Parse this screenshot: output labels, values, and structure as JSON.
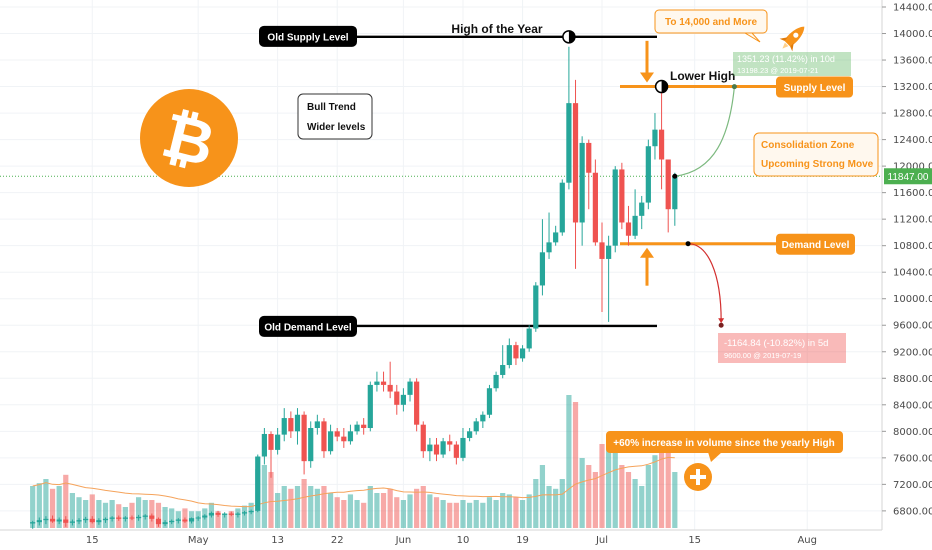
{
  "chart_data": {
    "type": "candlestick",
    "y_axis": {
      "min": 6600,
      "max": 14400,
      "ticks": [
        "14400.00",
        "14000.00",
        "13600.00",
        "13200.00",
        "12800.00",
        "12400.00",
        "12000.00",
        "11600.00",
        "11200.00",
        "10800.00",
        "10400.00",
        "10000.00",
        "9600.00",
        "9200.00",
        "8800.00",
        "8400.00",
        "8000.00",
        "7600.00",
        "7200.00",
        "6800.00"
      ],
      "current_price": "11847.00",
      "current_price_value": 11847
    },
    "x_axis": {
      "ticks": [
        "15",
        "May",
        "13",
        "22",
        "Jun",
        "10",
        "19",
        "Jul",
        "15",
        "Aug"
      ],
      "tick_dates": [
        "2019-04-15",
        "2019-05-01",
        "2019-05-13",
        "2019-05-22",
        "2019-06-01",
        "2019-06-10",
        "2019-06-19",
        "2019-07-01",
        "2019-07-15",
        "2019-08-01"
      ],
      "range": [
        "2019-04-06",
        "2019-08-18"
      ]
    },
    "candles": [
      {
        "date": "2019-04-06",
        "open": 6610,
        "high": 6650,
        "low": 6530,
        "close": 6630,
        "volume": 0.3
      },
      {
        "date": "2019-04-07",
        "open": 6630,
        "high": 6700,
        "low": 6580,
        "close": 6660,
        "volume": 0.32
      },
      {
        "date": "2019-04-08",
        "open": 6660,
        "high": 6720,
        "low": 6600,
        "close": 6680,
        "volume": 0.35
      },
      {
        "date": "2019-04-09",
        "open": 6680,
        "high": 6730,
        "low": 6620,
        "close": 6640,
        "volume": 0.28
      },
      {
        "date": "2019-04-10",
        "open": 6640,
        "high": 6700,
        "low": 6600,
        "close": 6670,
        "volume": 0.3
      },
      {
        "date": "2019-04-11",
        "open": 6670,
        "high": 6720,
        "low": 6560,
        "close": 6620,
        "volume": 0.38
      },
      {
        "date": "2019-04-12",
        "open": 6620,
        "high": 6670,
        "low": 6580,
        "close": 6640,
        "volume": 0.25
      },
      {
        "date": "2019-04-13",
        "open": 6640,
        "high": 6690,
        "low": 6600,
        "close": 6660,
        "volume": 0.22
      },
      {
        "date": "2019-04-14",
        "open": 6660,
        "high": 6710,
        "low": 6620,
        "close": 6680,
        "volume": 0.2
      },
      {
        "date": "2019-04-15",
        "open": 6680,
        "high": 6720,
        "low": 6610,
        "close": 6630,
        "volume": 0.24
      },
      {
        "date": "2019-04-16",
        "open": 6630,
        "high": 6690,
        "low": 6590,
        "close": 6660,
        "volume": 0.2
      },
      {
        "date": "2019-04-17",
        "open": 6660,
        "high": 6700,
        "low": 6620,
        "close": 6680,
        "volume": 0.18
      },
      {
        "date": "2019-04-18",
        "open": 6680,
        "high": 6720,
        "low": 6640,
        "close": 6700,
        "volume": 0.2
      },
      {
        "date": "2019-04-19",
        "open": 6700,
        "high": 6730,
        "low": 6650,
        "close": 6680,
        "volume": 0.17
      },
      {
        "date": "2019-04-20",
        "open": 6680,
        "high": 6720,
        "low": 6640,
        "close": 6700,
        "volume": 0.15
      },
      {
        "date": "2019-04-21",
        "open": 6700,
        "high": 6730,
        "low": 6660,
        "close": 6690,
        "volume": 0.18
      },
      {
        "date": "2019-04-22",
        "open": 6690,
        "high": 6740,
        "low": 6650,
        "close": 6710,
        "volume": 0.22
      },
      {
        "date": "2019-04-23",
        "open": 6710,
        "high": 6750,
        "low": 6670,
        "close": 6730,
        "volume": 0.2
      },
      {
        "date": "2019-04-24",
        "open": 6730,
        "high": 6760,
        "low": 6640,
        "close": 6680,
        "volume": 0.2
      },
      {
        "date": "2019-04-25",
        "open": 6680,
        "high": 6700,
        "low": 6560,
        "close": 6600,
        "volume": 0.18
      },
      {
        "date": "2019-04-26",
        "open": 6600,
        "high": 6660,
        "low": 6570,
        "close": 6630,
        "volume": 0.15
      },
      {
        "date": "2019-04-27",
        "open": 6630,
        "high": 6670,
        "low": 6600,
        "close": 6650,
        "volume": 0.14
      },
      {
        "date": "2019-04-28",
        "open": 6650,
        "high": 6690,
        "low": 6610,
        "close": 6670,
        "volume": 0.12
      },
      {
        "date": "2019-04-29",
        "open": 6670,
        "high": 6700,
        "low": 6620,
        "close": 6640,
        "volume": 0.14
      },
      {
        "date": "2019-04-30",
        "open": 6640,
        "high": 6700,
        "low": 6610,
        "close": 6690,
        "volume": 0.12
      },
      {
        "date": "2019-05-01",
        "open": 6690,
        "high": 6720,
        "low": 6650,
        "close": 6700,
        "volume": 0.12
      },
      {
        "date": "2019-05-02",
        "open": 6700,
        "high": 6750,
        "low": 6670,
        "close": 6730,
        "volume": 0.14
      },
      {
        "date": "2019-05-03",
        "open": 6730,
        "high": 6790,
        "low": 6700,
        "close": 6770,
        "volume": 0.18
      },
      {
        "date": "2019-05-04",
        "open": 6770,
        "high": 6800,
        "low": 6710,
        "close": 6740,
        "volume": 0.12
      },
      {
        "date": "2019-05-05",
        "open": 6740,
        "high": 6780,
        "low": 6700,
        "close": 6760,
        "volume": 0.1
      },
      {
        "date": "2019-05-06",
        "open": 6760,
        "high": 6790,
        "low": 6720,
        "close": 6740,
        "volume": 0.12
      },
      {
        "date": "2019-05-07",
        "open": 6740,
        "high": 6780,
        "low": 6700,
        "close": 6760,
        "volume": 0.14
      },
      {
        "date": "2019-05-08",
        "open": 6760,
        "high": 6800,
        "low": 6730,
        "close": 6780,
        "volume": 0.16
      },
      {
        "date": "2019-05-09",
        "open": 6780,
        "high": 6820,
        "low": 6750,
        "close": 6800,
        "volume": 0.18
      },
      {
        "date": "2019-05-10",
        "open": 6800,
        "high": 7650,
        "low": 6780,
        "close": 7620,
        "volume": 0.42
      },
      {
        "date": "2019-05-11",
        "open": 7620,
        "high": 8050,
        "low": 7500,
        "close": 7960,
        "volume": 0.45
      },
      {
        "date": "2019-05-12",
        "open": 7960,
        "high": 8000,
        "low": 7300,
        "close": 7720,
        "volume": 0.4
      },
      {
        "date": "2019-05-13",
        "open": 7720,
        "high": 8050,
        "low": 7650,
        "close": 7950,
        "volume": 0.25
      },
      {
        "date": "2019-05-14",
        "open": 7950,
        "high": 8350,
        "low": 7850,
        "close": 8200,
        "volume": 0.3
      },
      {
        "date": "2019-05-15",
        "open": 8200,
        "high": 8300,
        "low": 7900,
        "close": 8000,
        "volume": 0.28
      },
      {
        "date": "2019-05-16",
        "open": 8000,
        "high": 8350,
        "low": 7800,
        "close": 8250,
        "volume": 0.3
      },
      {
        "date": "2019-05-17",
        "open": 8250,
        "high": 8300,
        "low": 7350,
        "close": 7550,
        "volume": 0.35
      },
      {
        "date": "2019-05-18",
        "open": 7550,
        "high": 8150,
        "low": 7450,
        "close": 8050,
        "volume": 0.3
      },
      {
        "date": "2019-05-19",
        "open": 8050,
        "high": 8250,
        "low": 7950,
        "close": 8150,
        "volume": 0.28
      },
      {
        "date": "2019-05-20",
        "open": 8150,
        "high": 8200,
        "low": 7600,
        "close": 7700,
        "volume": 0.3
      },
      {
        "date": "2019-05-21",
        "open": 7700,
        "high": 8100,
        "low": 7650,
        "close": 8000,
        "volume": 0.25
      },
      {
        "date": "2019-05-22",
        "open": 8000,
        "high": 8050,
        "low": 7850,
        "close": 7920,
        "volume": 0.22
      },
      {
        "date": "2019-05-23",
        "open": 7920,
        "high": 8050,
        "low": 7750,
        "close": 7850,
        "volume": 0.2
      },
      {
        "date": "2019-05-24",
        "open": 7850,
        "high": 8100,
        "low": 7800,
        "close": 8000,
        "volume": 0.24
      },
      {
        "date": "2019-05-25",
        "open": 8000,
        "high": 8150,
        "low": 7950,
        "close": 8100,
        "volume": 0.2
      },
      {
        "date": "2019-05-26",
        "open": 8100,
        "high": 8200,
        "low": 7950,
        "close": 8050,
        "volume": 0.18
      },
      {
        "date": "2019-05-27",
        "open": 8050,
        "high": 8750,
        "low": 8000,
        "close": 8700,
        "volume": 0.3
      },
      {
        "date": "2019-05-28",
        "open": 8700,
        "high": 8900,
        "low": 8600,
        "close": 8750,
        "volume": 0.25
      },
      {
        "date": "2019-05-29",
        "open": 8750,
        "high": 8900,
        "low": 8600,
        "close": 8700,
        "volume": 0.25
      },
      {
        "date": "2019-05-30",
        "open": 8700,
        "high": 9050,
        "low": 8500,
        "close": 8600,
        "volume": 0.28
      },
      {
        "date": "2019-05-31",
        "open": 8600,
        "high": 8700,
        "low": 8250,
        "close": 8400,
        "volume": 0.22
      },
      {
        "date": "2019-06-01",
        "open": 8400,
        "high": 8650,
        "low": 8300,
        "close": 8550,
        "volume": 0.2
      },
      {
        "date": "2019-06-02",
        "open": 8550,
        "high": 8800,
        "low": 8450,
        "close": 8750,
        "volume": 0.24
      },
      {
        "date": "2019-06-03",
        "open": 8750,
        "high": 8800,
        "low": 8000,
        "close": 8100,
        "volume": 0.28
      },
      {
        "date": "2019-06-04",
        "open": 8100,
        "high": 8150,
        "low": 7600,
        "close": 7700,
        "volume": 0.3
      },
      {
        "date": "2019-06-05",
        "open": 7700,
        "high": 7900,
        "low": 7550,
        "close": 7800,
        "volume": 0.24
      },
      {
        "date": "2019-06-06",
        "open": 7800,
        "high": 7900,
        "low": 7550,
        "close": 7650,
        "volume": 0.22
      },
      {
        "date": "2019-06-07",
        "open": 7650,
        "high": 7900,
        "low": 7600,
        "close": 7850,
        "volume": 0.2
      },
      {
        "date": "2019-06-08",
        "open": 7850,
        "high": 7950,
        "low": 7700,
        "close": 7800,
        "volume": 0.18
      },
      {
        "date": "2019-06-09",
        "open": 7800,
        "high": 7850,
        "low": 7500,
        "close": 7600,
        "volume": 0.18
      },
      {
        "date": "2019-06-10",
        "open": 7600,
        "high": 8050,
        "low": 7550,
        "close": 7900,
        "volume": 0.2
      },
      {
        "date": "2019-06-11",
        "open": 7900,
        "high": 8050,
        "low": 7850,
        "close": 8000,
        "volume": 0.18
      },
      {
        "date": "2019-06-12",
        "open": 8000,
        "high": 8200,
        "low": 7950,
        "close": 8150,
        "volume": 0.2
      },
      {
        "date": "2019-06-13",
        "open": 8150,
        "high": 8300,
        "low": 8050,
        "close": 8250,
        "volume": 0.18
      },
      {
        "date": "2019-06-14",
        "open": 8250,
        "high": 8700,
        "low": 8200,
        "close": 8650,
        "volume": 0.22
      },
      {
        "date": "2019-06-15",
        "open": 8650,
        "high": 8900,
        "low": 8600,
        "close": 8850,
        "volume": 0.2
      },
      {
        "date": "2019-06-16",
        "open": 8850,
        "high": 9300,
        "low": 8800,
        "close": 9000,
        "volume": 0.25
      },
      {
        "date": "2019-06-17",
        "open": 9000,
        "high": 9400,
        "low": 8950,
        "close": 9300,
        "volume": 0.24
      },
      {
        "date": "2019-06-18",
        "open": 9300,
        "high": 9350,
        "low": 9000,
        "close": 9100,
        "volume": 0.22
      },
      {
        "date": "2019-06-19",
        "open": 9100,
        "high": 9300,
        "low": 9050,
        "close": 9250,
        "volume": 0.2
      },
      {
        "date": "2019-06-20",
        "open": 9250,
        "high": 9600,
        "low": 9200,
        "close": 9550,
        "volume": 0.24
      },
      {
        "date": "2019-06-21",
        "open": 9550,
        "high": 10250,
        "low": 9500,
        "close": 10200,
        "volume": 0.35
      },
      {
        "date": "2019-06-22",
        "open": 10200,
        "high": 11200,
        "low": 10050,
        "close": 10700,
        "volume": 0.45
      },
      {
        "date": "2019-06-23",
        "open": 10700,
        "high": 11300,
        "low": 10600,
        "close": 10850,
        "volume": 0.3
      },
      {
        "date": "2019-06-24",
        "open": 10850,
        "high": 11100,
        "low": 10800,
        "close": 11000,
        "volume": 0.28
      },
      {
        "date": "2019-06-25",
        "open": 11000,
        "high": 11800,
        "low": 10950,
        "close": 11750,
        "volume": 0.35
      },
      {
        "date": "2019-06-26",
        "open": 11750,
        "high": 13800,
        "low": 11650,
        "close": 12950,
        "volume": 0.95
      },
      {
        "date": "2019-06-27",
        "open": 12950,
        "high": 13300,
        "low": 10450,
        "close": 11150,
        "volume": 0.9
      },
      {
        "date": "2019-06-28",
        "open": 11150,
        "high": 12450,
        "low": 10800,
        "close": 12350,
        "volume": 0.5
      },
      {
        "date": "2019-06-29",
        "open": 12350,
        "high": 12400,
        "low": 11350,
        "close": 11900,
        "volume": 0.45
      },
      {
        "date": "2019-06-30",
        "open": 11900,
        "high": 12100,
        "low": 10800,
        "close": 10850,
        "volume": 0.4
      },
      {
        "date": "2019-07-01",
        "open": 10850,
        "high": 11150,
        "low": 9800,
        "close": 10600,
        "volume": 0.6
      },
      {
        "date": "2019-07-02",
        "open": 10600,
        "high": 10950,
        "low": 9650,
        "close": 10800,
        "volume": 0.62
      },
      {
        "date": "2019-07-03",
        "open": 10800,
        "high": 12000,
        "low": 10700,
        "close": 11950,
        "volume": 0.58
      },
      {
        "date": "2019-07-04",
        "open": 11950,
        "high": 12050,
        "low": 11050,
        "close": 11150,
        "volume": 0.45
      },
      {
        "date": "2019-07-05",
        "open": 11150,
        "high": 11400,
        "low": 10800,
        "close": 10950,
        "volume": 0.4
      },
      {
        "date": "2019-07-06",
        "open": 10950,
        "high": 11650,
        "low": 10900,
        "close": 11250,
        "volume": 0.35
      },
      {
        "date": "2019-07-07",
        "open": 11250,
        "high": 11550,
        "low": 11050,
        "close": 11450,
        "volume": 0.3
      },
      {
        "date": "2019-07-08",
        "open": 11450,
        "high": 12400,
        "low": 11350,
        "close": 12300,
        "volume": 0.45
      },
      {
        "date": "2019-07-09",
        "open": 12300,
        "high": 12800,
        "low": 12100,
        "close": 12550,
        "volume": 0.52
      },
      {
        "date": "2019-07-10",
        "open": 12550,
        "high": 13150,
        "low": 11650,
        "close": 12100,
        "volume": 0.65
      },
      {
        "date": "2019-07-11",
        "open": 12100,
        "high": 12100,
        "low": 11000,
        "close": 11350,
        "volume": 0.58
      },
      {
        "date": "2019-07-12",
        "open": 11350,
        "high": 11900,
        "low": 11100,
        "close": 11847,
        "volume": 0.4
      }
    ],
    "levels": [
      {
        "label": "Old Supply Level",
        "value": 13950
      },
      {
        "label": "Old Demand Level",
        "value": 9590
      },
      {
        "label": "Supply Level",
        "value": 13200
      },
      {
        "label": "Demand Level",
        "value": 10830
      }
    ],
    "annotations": {
      "high_of_year": "High of the Year",
      "lower_high": "Lower High",
      "bull_trend": [
        "Bull Trend",
        "Wider levels"
      ],
      "to_14000": "To 14,000 and More",
      "consolidation": [
        "Consolidation Zone",
        "Upcoming Strong Move"
      ],
      "volume_note": "+60% increase in volume since the yearly High",
      "up_measure": {
        "line1": "1351.23 (11.42%) in 10d",
        "line2": "13198.23 @ 2019-07-21",
        "end_date": "2019-07-21",
        "end_value": 13198.23
      },
      "down_measure": {
        "line1": "-1164.84 (-10.82%) in 5d",
        "line2": "9600.00 @ 2019-07-19",
        "end_date": "2019-07-19",
        "end_value": 9600
      }
    },
    "colors": {
      "up": "#26a69a",
      "down": "#ef5350",
      "accent": "#f7931a",
      "price_line": "#4caf50"
    }
  }
}
